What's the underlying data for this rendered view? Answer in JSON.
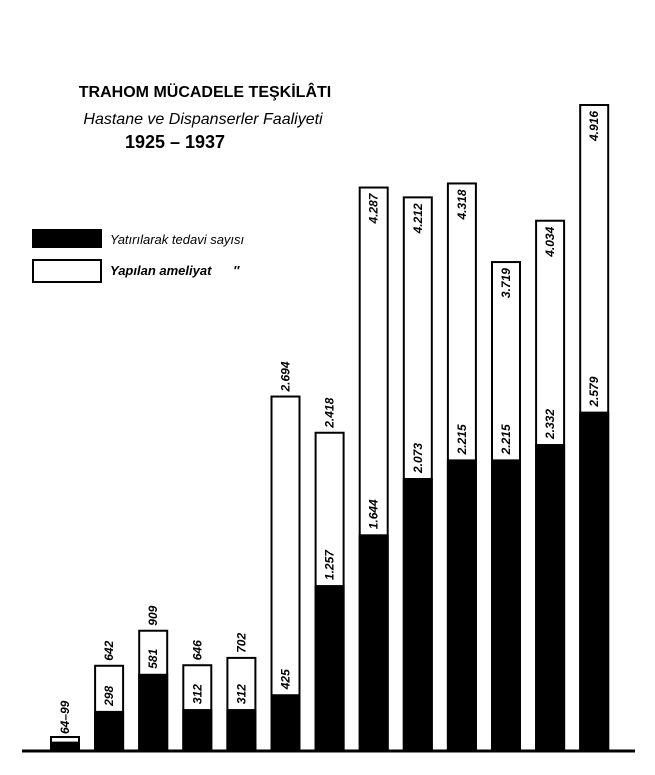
{
  "chart_data": {
    "type": "bar",
    "title": "TRAHOM MÜCADELE TEŞKİLÂTI",
    "subtitle": "Hastane ve Dispanserler Faaliyeti",
    "period": "1925 – 1937",
    "annotations": [
      "64–99"
    ],
    "categories": [
      null,
      null,
      null,
      null,
      null,
      null,
      null,
      null,
      null,
      null,
      null,
      null,
      null
    ],
    "series": [
      {
        "name": "Yapılan ameliyat      ″",
        "color": "#ffffff",
        "values": [
          99,
          642,
          909,
          646,
          702,
          2694,
          2418,
          4287,
          4212,
          4318,
          3719,
          4034,
          4916
        ],
        "value_labels": [
          null,
          "642",
          "909",
          "646",
          "702",
          "2.694",
          "2.418",
          "4.287",
          "4.212",
          "4.318",
          "3.719",
          "4.034",
          "4.916"
        ]
      },
      {
        "name": "Yatırılarak tedavi sayısı",
        "color": "#000000",
        "values": [
          64,
          298,
          581,
          312,
          312,
          425,
          1257,
          1644,
          2073,
          2215,
          2215,
          2332,
          2579
        ],
        "value_labels": [
          null,
          "298",
          "581",
          "312",
          "312",
          "425",
          "1.257",
          "1.644",
          "2.073",
          "2.215",
          "2.215",
          "2.332",
          "2.579"
        ]
      }
    ]
  }
}
